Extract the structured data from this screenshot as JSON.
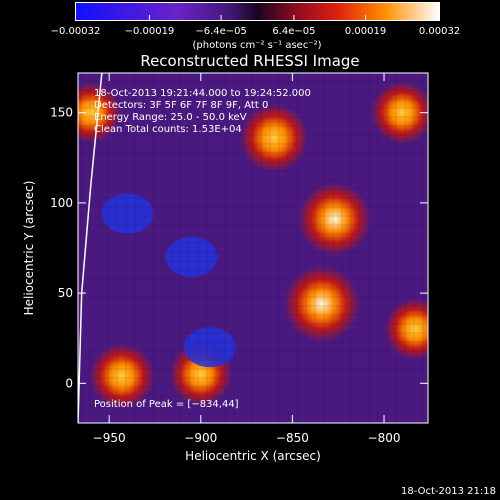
{
  "chart_data": {
    "type": "heatmap",
    "title": "Reconstructed RHESSI Image",
    "xlabel": "Heliocentric X (arcsec)",
    "ylabel": "Heliocentric Y (arcsec)",
    "xlim": [
      -967,
      -776
    ],
    "ylim": [
      -22,
      172
    ],
    "xticks": [
      -950,
      -900,
      -850,
      -800
    ],
    "yticks": [
      0,
      50,
      100,
      150
    ],
    "x_tick_labels": [
      "−950",
      "−900",
      "−850",
      "−800"
    ],
    "y_tick_labels": [
      "0",
      "50",
      "100",
      "150"
    ],
    "colorbar": {
      "range": [
        -0.00032,
        0.00032
      ],
      "ticks": [
        -0.00032,
        -0.00019,
        -6.4e-05,
        6.4e-05,
        0.00019,
        0.00032
      ],
      "tick_labels": [
        "−0.00032",
        "−0.00019",
        "−6.4e−05",
        "6.4e−05",
        "0.00019",
        "0.00032"
      ],
      "unit_label": "(photons cm⁻² s⁻¹ asec⁻²)"
    },
    "sources": [
      {
        "x": -834,
        "y": 44,
        "value": 0.00032
      },
      {
        "x": -827,
        "y": 91,
        "value": 0.00029
      },
      {
        "x": -860,
        "y": 136,
        "value": 0.00025
      },
      {
        "x": -943,
        "y": 4,
        "value": 0.00022
      },
      {
        "x": -900,
        "y": 5,
        "value": 0.0002
      },
      {
        "x": -960,
        "y": 150,
        "value": 0.00018
      },
      {
        "x": -790,
        "y": 150,
        "value": 0.0002
      },
      {
        "x": -783,
        "y": 30,
        "value": 0.00019
      }
    ],
    "minima": [
      {
        "x": -940,
        "y": 94
      },
      {
        "x": -905,
        "y": 70
      },
      {
        "x": -895,
        "y": 20
      }
    ],
    "limb_arc": {
      "points": [
        [
          -954,
          172
        ],
        [
          -960,
          110
        ],
        [
          -965,
          50
        ],
        [
          -967,
          -22
        ]
      ]
    },
    "annotations": {
      "time_range": "18-Oct-2013 19:21:44.000 to 19:24:52.000",
      "detectors": "Detectors: 3F 5F 6F 7F 8F 9F, Att 0",
      "energy_range": "Energy Range: 25.0 - 50.0 keV",
      "clean": "Clean    Total counts: 1.53E+04",
      "peak": "Position of Peak = [−834,44]"
    }
  },
  "footer_timestamp": "18-Oct-2013 21:18"
}
